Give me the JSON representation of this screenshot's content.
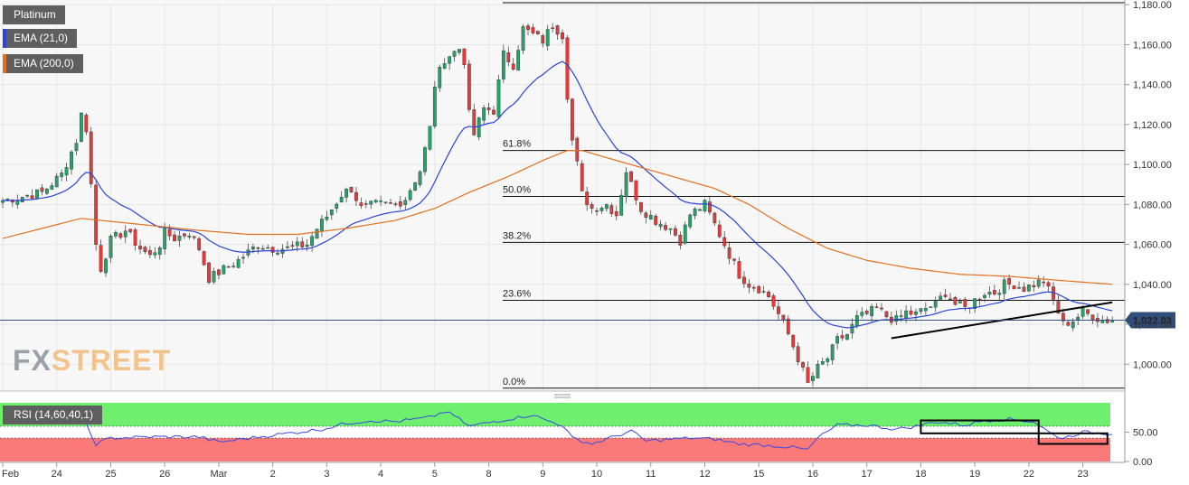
{
  "legends": {
    "instrument": "Platinum",
    "ema_short": "EMA (21,0)",
    "ema_long": "EMA (200,0)",
    "rsi": "RSI (14,60,40,1)"
  },
  "colors": {
    "up": "#26a269",
    "down": "#e23b3b",
    "ema_short": "#2a44d8",
    "ema_long": "#e0701e",
    "rsi_line": "#3949e0",
    "rsi_overbought": "#6ef06e",
    "rsi_oversold": "#fa7a7a",
    "price_label": "#2f4f7a"
  },
  "watermark": {
    "fx": "FX",
    "street": "STREET"
  },
  "chart_data": {
    "type": "candlestick",
    "price_axis": {
      "ylim": [
        987,
        1181
      ],
      "ticks": [
        1000,
        1020,
        1040,
        1060,
        1080,
        1100,
        1120,
        1140,
        1160,
        1180
      ],
      "tick_labels": [
        "1,000.00",
        "1,020.00",
        "1,040.00",
        "1,060.00",
        "1,080.00",
        "1,100.00",
        "1,120.00",
        "1,140.00",
        "1,160.00",
        "1,180.00"
      ]
    },
    "x_axis": {
      "labels": [
        "Feb",
        "24",
        "25",
        "26",
        "Mar",
        "2",
        "3",
        "4",
        "5",
        "8",
        "9",
        "10",
        "11",
        "12",
        "15",
        "16",
        "17",
        "18",
        "19",
        "22",
        "23"
      ],
      "label_index": [
        0,
        11,
        22,
        33,
        44,
        55,
        66,
        77,
        88,
        99,
        110,
        121,
        132,
        143,
        154,
        165,
        176,
        187,
        198,
        209,
        220
      ]
    },
    "current_price": {
      "value": 1022.03,
      "label": "1,022.03"
    },
    "fibonacci": [
      {
        "label": "61.8%",
        "value": 1107
      },
      {
        "label": "50.0%",
        "value": 1084
      },
      {
        "label": "38.2%",
        "value": 1061
      },
      {
        "label": "23.6%",
        "value": 1032
      },
      {
        "label": "0.0%",
        "value": 988
      }
    ],
    "fib_top": 1181,
    "trendline": {
      "from": [
        181,
        1013
      ],
      "to": [
        226,
        1031
      ]
    },
    "path_anchors": [
      [
        0,
        1082
      ],
      [
        4,
        1084
      ],
      [
        8,
        1086
      ],
      [
        12,
        1095
      ],
      [
        15,
        1112
      ],
      [
        16,
        1125
      ],
      [
        17,
        1118
      ],
      [
        18,
        1090
      ],
      [
        19,
        1060
      ],
      [
        20,
        1048
      ],
      [
        22,
        1062
      ],
      [
        25,
        1067
      ],
      [
        28,
        1058
      ],
      [
        30,
        1054
      ],
      [
        32,
        1060
      ],
      [
        33,
        1066
      ],
      [
        35,
        1063
      ],
      [
        38,
        1066
      ],
      [
        40,
        1058
      ],
      [
        42,
        1043
      ],
      [
        44,
        1046
      ],
      [
        48,
        1052
      ],
      [
        52,
        1060
      ],
      [
        55,
        1058
      ],
      [
        58,
        1058
      ],
      [
        62,
        1060
      ],
      [
        64,
        1068
      ],
      [
        66,
        1074
      ],
      [
        69,
        1085
      ],
      [
        71,
        1088
      ],
      [
        73,
        1078
      ],
      [
        76,
        1080
      ],
      [
        80,
        1080
      ],
      [
        82,
        1083
      ],
      [
        85,
        1097
      ],
      [
        87,
        1118
      ],
      [
        88,
        1140
      ],
      [
        90,
        1153
      ],
      [
        93,
        1158
      ],
      [
        94,
        1152
      ],
      [
        95,
        1125
      ],
      [
        96,
        1115
      ],
      [
        98,
        1128
      ],
      [
        100,
        1127
      ],
      [
        102,
        1155
      ],
      [
        104,
        1150
      ],
      [
        106,
        1168
      ],
      [
        108,
        1165
      ],
      [
        110,
        1162
      ],
      [
        112,
        1170
      ],
      [
        114,
        1165
      ],
      [
        115,
        1135
      ],
      [
        116,
        1112
      ],
      [
        117,
        1100
      ],
      [
        118,
        1085
      ],
      [
        120,
        1078
      ],
      [
        123,
        1080
      ],
      [
        125,
        1075
      ],
      [
        127,
        1097
      ],
      [
        128,
        1090
      ],
      [
        130,
        1078
      ],
      [
        133,
        1072
      ],
      [
        136,
        1068
      ],
      [
        138,
        1062
      ],
      [
        140,
        1075
      ],
      [
        143,
        1080
      ],
      [
        145,
        1070
      ],
      [
        147,
        1060
      ],
      [
        150,
        1045
      ],
      [
        152,
        1040
      ],
      [
        154,
        1038
      ],
      [
        156,
        1034
      ],
      [
        158,
        1025
      ],
      [
        160,
        1015
      ],
      [
        162,
        1003
      ],
      [
        164,
        990
      ],
      [
        166,
        998
      ],
      [
        168,
        1003
      ],
      [
        170,
        1012
      ],
      [
        172,
        1015
      ],
      [
        174,
        1023
      ],
      [
        176,
        1025
      ],
      [
        178,
        1028
      ],
      [
        180,
        1024
      ],
      [
        182,
        1022
      ],
      [
        184,
        1026
      ],
      [
        186,
        1025
      ],
      [
        188,
        1028
      ],
      [
        190,
        1030
      ],
      [
        192,
        1036
      ],
      [
        194,
        1030
      ],
      [
        196,
        1028
      ],
      [
        198,
        1032
      ],
      [
        200,
        1036
      ],
      [
        202,
        1036
      ],
      [
        204,
        1040
      ],
      [
        206,
        1040
      ],
      [
        208,
        1038
      ],
      [
        210,
        1040
      ],
      [
        212,
        1042
      ],
      [
        214,
        1032
      ],
      [
        216,
        1020
      ],
      [
        218,
        1022
      ],
      [
        220,
        1026
      ],
      [
        222,
        1024
      ],
      [
        224,
        1022
      ]
    ],
    "ema_long_anchors": [
      [
        0,
        1063
      ],
      [
        8,
        1068
      ],
      [
        16,
        1073
      ],
      [
        24,
        1071
      ],
      [
        32,
        1069
      ],
      [
        40,
        1067
      ],
      [
        50,
        1065
      ],
      [
        60,
        1065
      ],
      [
        70,
        1068
      ],
      [
        80,
        1072
      ],
      [
        88,
        1078
      ],
      [
        95,
        1086
      ],
      [
        103,
        1094
      ],
      [
        110,
        1102
      ],
      [
        115,
        1107
      ],
      [
        118,
        1107
      ],
      [
        125,
        1102
      ],
      [
        135,
        1095
      ],
      [
        145,
        1088
      ],
      [
        152,
        1080
      ],
      [
        160,
        1068
      ],
      [
        168,
        1058
      ],
      [
        176,
        1052
      ],
      [
        185,
        1048
      ],
      [
        195,
        1045
      ],
      [
        205,
        1044
      ],
      [
        215,
        1042
      ],
      [
        226,
        1040
      ]
    ],
    "rsi": {
      "ylim": [
        0,
        100
      ],
      "levels": {
        "overbought": 60,
        "oversold": 40
      },
      "tick_labels": [
        "50.00",
        "0.00"
      ],
      "tick_values": [
        50,
        0
      ],
      "anchors": [
        [
          0,
          72
        ],
        [
          10,
          74
        ],
        [
          16,
          80
        ],
        [
          18,
          45
        ],
        [
          19,
          30
        ],
        [
          22,
          40
        ],
        [
          30,
          42
        ],
        [
          40,
          42
        ],
        [
          44,
          33
        ],
        [
          55,
          45
        ],
        [
          65,
          55
        ],
        [
          70,
          65
        ],
        [
          75,
          70
        ],
        [
          80,
          68
        ],
        [
          87,
          75
        ],
        [
          90,
          85
        ],
        [
          92,
          78
        ],
        [
          95,
          60
        ],
        [
          100,
          68
        ],
        [
          105,
          75
        ],
        [
          108,
          80
        ],
        [
          110,
          72
        ],
        [
          114,
          62
        ],
        [
          116,
          40
        ],
        [
          120,
          30
        ],
        [
          128,
          52
        ],
        [
          131,
          35
        ],
        [
          140,
          40
        ],
        [
          145,
          38
        ],
        [
          150,
          30
        ],
        [
          155,
          28
        ],
        [
          160,
          25
        ],
        [
          164,
          20
        ],
        [
          166,
          40
        ],
        [
          170,
          62
        ],
        [
          176,
          62
        ],
        [
          182,
          55
        ],
        [
          186,
          60
        ],
        [
          190,
          68
        ],
        [
          196,
          62
        ],
        [
          200,
          70
        ],
        [
          205,
          72
        ],
        [
          210,
          68
        ],
        [
          214,
          45
        ],
        [
          216,
          40
        ],
        [
          220,
          50
        ],
        [
          224,
          48
        ]
      ],
      "boxes": [
        {
          "from": [
            187,
            48
          ],
          "to": [
            211,
            70
          ]
        },
        {
          "from": [
            211,
            30
          ],
          "to": [
            225,
            48
          ]
        }
      ]
    }
  }
}
